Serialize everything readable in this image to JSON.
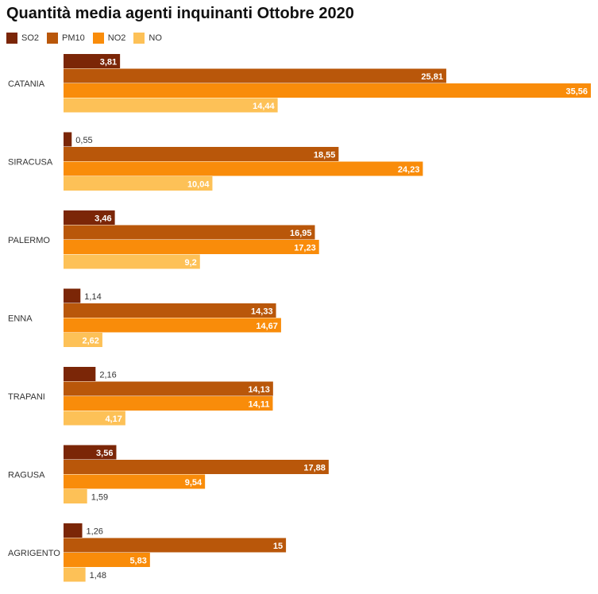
{
  "chart_data": {
    "type": "bar",
    "orientation": "horizontal",
    "title": "Quantità media agenti inquinanti Ottobre 2020",
    "legend_position": "top-left",
    "categories": [
      "CATANIA",
      "SIRACUSA",
      "PALERMO",
      "ENNA",
      "TRAPANI",
      "RAGUSA",
      "AGRIGENTO"
    ],
    "series": [
      {
        "name": "SO2",
        "color": "#7b2607",
        "values": [
          3.81,
          0.55,
          3.46,
          1.14,
          2.16,
          3.56,
          1.26
        ],
        "labels": [
          "3,81",
          "0,55",
          "3,46",
          "1,14",
          "2,16",
          "3,56",
          "1,26"
        ]
      },
      {
        "name": "PM10",
        "color": "#b9570a",
        "values": [
          25.81,
          18.55,
          16.95,
          14.33,
          14.13,
          17.88,
          15
        ],
        "labels": [
          "25,81",
          "18,55",
          "16,95",
          "14,33",
          "14,13",
          "17,88",
          "15"
        ]
      },
      {
        "name": "NO2",
        "color": "#f98c0a",
        "values": [
          35.56,
          24.23,
          17.23,
          14.67,
          14.11,
          9.54,
          5.83
        ],
        "labels": [
          "35,56",
          "24,23",
          "17,23",
          "14,67",
          "14,11",
          "9,54",
          "5,83"
        ]
      },
      {
        "name": "NO",
        "color": "#fdc157",
        "values": [
          14.44,
          10.04,
          9.2,
          2.62,
          4.17,
          1.59,
          1.48
        ],
        "labels": [
          "14,44",
          "10,04",
          "9,2",
          "2,62",
          "4,17",
          "1,59",
          "1,48"
        ]
      }
    ],
    "xlim": [
      0,
      35.56
    ],
    "grid": false
  }
}
